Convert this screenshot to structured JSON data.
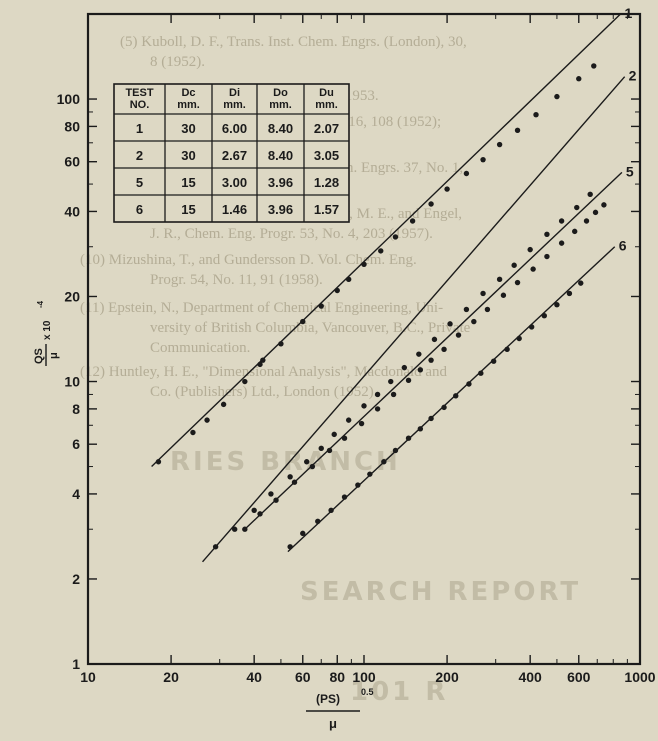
{
  "colors": {
    "paper": "#ddd8c4",
    "ink": "#1b1b1b",
    "ghost_text": "#b4ad96"
  },
  "bleed_through_text": [
    "(5) Kuboll, D. F., Trans. Inst. Chem. Engrs. (London), 30,",
    "8 (1952).",
    "(6) Hershey, D., Ind. Chem. Eng. 55, 1953.",
    "(7) Takamatsu, H., Chem. Eng. Japan 16, 108 (1952);",
    "S.L.A. translation 58-7",
    "(8) Glaser, L.H., M., Trans. Inst. Chem. Engrs. 37, No. 1,",
    "84 (1953).",
    "(9) Haas, P. A., Nurmi, E. O., Whatley, M. E., and Engel,",
    "J. R., Chem. Eng. Progr. 53, No. 4, 203 (1957).",
    "(10) Mizushina, T., and Gundersson D. Vol. Chem. Eng.",
    "Progr. 54, No. 11, 91 (1958).",
    "(11) Epstein, N., Department of Chemical Engineering, Uni-",
    "versity of British Columbia, Vancouver, B.C., Private",
    "Communication.",
    "(12) Huntley, H. E., \"Dimensional Analysis\", Macdonald and",
    "Co. (Publishers) Ltd., London (1952).",
    "RIES BRANCH",
    "SEARCH REPORT",
    "101 R"
  ],
  "chart_data": {
    "type": "scatter",
    "x_scale": "log",
    "y_scale": "log",
    "xlim": [
      10,
      1000
    ],
    "ylim": [
      1,
      200
    ],
    "x_ticks": [
      10,
      20,
      40,
      60,
      80,
      100,
      200,
      400,
      600,
      1000
    ],
    "y_ticks": [
      1,
      2,
      4,
      6,
      8,
      10,
      20,
      40,
      60,
      80,
      100
    ],
    "x_tick_labels": [
      "10",
      "20",
      "40",
      "60",
      "80",
      "100",
      "200",
      "400",
      "600",
      "1000"
    ],
    "y_tick_labels": [
      "1",
      "2",
      "4",
      "6",
      "8",
      "10",
      "20",
      "40",
      "60",
      "80",
      "100"
    ],
    "xlabel_top": "(PS)",
    "xlabel_exp": "0.5",
    "xlabel_bottom": "μ",
    "ylabel_top": "QS",
    "ylabel_bottom": "μ",
    "ylabel_suffix": "x 10",
    "ylabel_exp": "-4",
    "grid": false,
    "series": [
      {
        "name": "1",
        "line": [
          [
            17,
            5.0
          ],
          [
            850,
            200
          ]
        ],
        "x": [
          18,
          24,
          27,
          31,
          37,
          42,
          43,
          50,
          60,
          70,
          80,
          88,
          100,
          115,
          130,
          150,
          175,
          200,
          235,
          270,
          310,
          360,
          420,
          500,
          600,
          680
        ],
        "y": [
          5.2,
          6.6,
          7.3,
          8.3,
          10.0,
          11.5,
          11.9,
          13.6,
          16.3,
          18.5,
          21.0,
          23.0,
          26.0,
          29.0,
          32.5,
          37.0,
          42.5,
          48.0,
          54.5,
          61.0,
          69.0,
          77.5,
          88.0,
          102.0,
          118.0,
          131.0
        ]
      },
      {
        "name": "2",
        "line": [
          [
            26,
            2.3
          ],
          [
            880,
            120
          ]
        ],
        "x": [
          29,
          34,
          40,
          46,
          54,
          62,
          70,
          78,
          88,
          100,
          112,
          125,
          140,
          158,
          180,
          205,
          235,
          270,
          310,
          350,
          400,
          460,
          520,
          590,
          660
        ],
        "y": [
          2.6,
          3.0,
          3.5,
          4.0,
          4.6,
          5.2,
          5.8,
          6.5,
          7.3,
          8.2,
          9.0,
          10.0,
          11.2,
          12.5,
          14.1,
          16.0,
          18.0,
          20.5,
          23.0,
          25.8,
          29.3,
          33.2,
          37.0,
          41.3,
          46.0
        ]
      },
      {
        "name": "5",
        "line": [
          [
            37,
            3.0
          ],
          [
            860,
            55
          ]
        ],
        "x": [
          37,
          42,
          48,
          56,
          65,
          75,
          85,
          98,
          112,
          128,
          145,
          160,
          175,
          195,
          220,
          250,
          280,
          320,
          360,
          410,
          460,
          520,
          580,
          640,
          690,
          740
        ],
        "y": [
          3.0,
          3.4,
          3.8,
          4.4,
          5.0,
          5.7,
          6.3,
          7.1,
          8.0,
          9.0,
          10.1,
          11.0,
          11.9,
          13.0,
          14.6,
          16.3,
          18.0,
          20.2,
          22.4,
          25.0,
          27.7,
          30.9,
          34.0,
          37.0,
          39.7,
          42.2
        ]
      },
      {
        "name": "6",
        "line": [
          [
            53,
            2.5
          ],
          [
            810,
            30
          ]
        ],
        "x": [
          54,
          60,
          68,
          76,
          85,
          95,
          105,
          118,
          130,
          145,
          160,
          175,
          195,
          215,
          240,
          265,
          295,
          330,
          365,
          405,
          450,
          500,
          555,
          610
        ],
        "y": [
          2.6,
          2.9,
          3.2,
          3.5,
          3.9,
          4.3,
          4.7,
          5.2,
          5.7,
          6.3,
          6.8,
          7.4,
          8.1,
          8.9,
          9.8,
          10.7,
          11.8,
          13.0,
          14.2,
          15.6,
          17.1,
          18.7,
          20.5,
          22.3
        ]
      }
    ],
    "table": {
      "headers": [
        "TEST NO.",
        "Dc mm.",
        "Di mm.",
        "Do mm.",
        "Du mm."
      ],
      "header_lines": [
        [
          "TEST",
          "NO."
        ],
        [
          "Dc",
          "mm."
        ],
        [
          "Di",
          "mm."
        ],
        [
          "Do",
          "mm."
        ],
        [
          "Du",
          "mm."
        ]
      ],
      "rows": [
        [
          "1",
          "30",
          "6.00",
          "8.40",
          "2.07"
        ],
        [
          "2",
          "30",
          "2.67",
          "8.40",
          "3.05"
        ],
        [
          "5",
          "15",
          "3.00",
          "3.96",
          "1.28"
        ],
        [
          "6",
          "15",
          "1.46",
          "3.96",
          "1.57"
        ]
      ]
    }
  }
}
